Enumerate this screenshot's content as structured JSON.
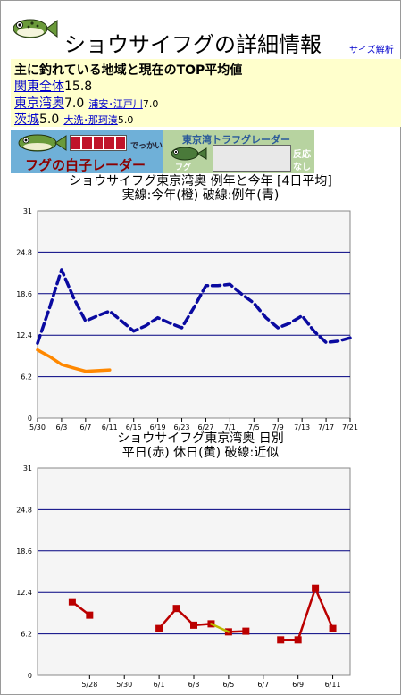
{
  "header": {
    "title": "ショウサイフグの詳細情報",
    "size_link": "サイズ解析"
  },
  "summary": {
    "heading": "主に釣れている地域と現在のTOP平均値",
    "rows": [
      {
        "name": "関東全体",
        "value": "15.8",
        "subs": []
      },
      {
        "name": "東京湾奥",
        "value": "7.0",
        "subs": [
          {
            "name": "浦安･江戸川",
            "value": "7.0"
          }
        ]
      },
      {
        "name": "茨城",
        "value": "5.0",
        "subs": [
          {
            "name": "大洗･那珂湊",
            "value": "5.0"
          }
        ]
      }
    ]
  },
  "banners": {
    "left": {
      "small": "でっかい",
      "main": "フグの白子レーダー"
    },
    "right": {
      "title": "東京湾トラフグレーダー",
      "fish": "フグ",
      "status1": "反応",
      "status2": "なし"
    }
  },
  "colors": {
    "this_year": "#ff8800",
    "avg_year": "#0a0aa0",
    "weekday": "#bb0000",
    "holiday": "#bbbb00",
    "plot_bg": "#f5f5f5",
    "grid": "#000080"
  },
  "chart_data": [
    {
      "type": "line",
      "title": "ショウサイフグ東京湾奥 例年と今年 [4日平均]",
      "subtitle": "実線:今年(橙) 破線:例年(青)",
      "xlabel": "",
      "ylabel": "",
      "ylim": [
        0,
        31
      ],
      "yticks": [
        "0",
        "6.2",
        "12.4",
        "18.6",
        "24.8",
        "31"
      ],
      "categories": [
        "5/30",
        "6/3",
        "6/7",
        "6/11",
        "6/15",
        "6/19",
        "6/23",
        "6/27",
        "7/1",
        "7/5",
        "7/9",
        "7/13",
        "7/17",
        "7/21"
      ],
      "grid": true,
      "series": [
        {
          "style": "dashed",
          "color": "#0a0aa0",
          "x": [
            "5/30",
            "6/1",
            "6/3",
            "6/5",
            "6/7",
            "6/9",
            "6/11",
            "6/13",
            "6/15",
            "6/17",
            "6/19",
            "6/21",
            "6/23",
            "6/25",
            "6/27",
            "6/29",
            "7/1",
            "7/3",
            "7/5",
            "7/7",
            "7/9",
            "7/11",
            "7/13",
            "7/15",
            "7/17",
            "7/19",
            "7/21"
          ],
          "values": [
            11.2,
            16.5,
            22.2,
            18.0,
            14.5,
            15.3,
            16.0,
            14.5,
            13.0,
            13.8,
            15.0,
            14.2,
            13.5,
            16.5,
            19.8,
            19.8,
            20.0,
            18.5,
            17.2,
            15.0,
            13.5,
            14.2,
            15.3,
            13.0,
            11.3,
            11.5,
            12.0
          ]
        },
        {
          "style": "solid",
          "color": "#ff8800",
          "x": [
            "5/30",
            "6/1",
            "6/3",
            "6/5",
            "6/7",
            "6/9",
            "6/11"
          ],
          "values": [
            10.2,
            9.2,
            8.0,
            7.5,
            7.0,
            7.1,
            7.2
          ]
        }
      ]
    },
    {
      "type": "line",
      "title": "ショウサイフグ東京湾奥 日別",
      "subtitle": "平日(赤) 休日(黄) 破線:近似",
      "xlabel": "",
      "ylabel": "",
      "ylim": [
        0,
        31
      ],
      "yticks": [
        "0",
        "6.2",
        "12.4",
        "18.6",
        "24.8",
        "31"
      ],
      "categories": [
        "5/28",
        "5/30",
        "6/1",
        "6/3",
        "6/5",
        "6/7",
        "6/9",
        "6/11"
      ],
      "grid": true,
      "series": [
        {
          "style": "solid",
          "color": "#bb0000",
          "x": [
            "5/27",
            "5/28",
            "6/1",
            "6/2",
            "6/3",
            "6/4",
            "6/5",
            "6/6",
            "6/8",
            "6/9",
            "6/10",
            "6/11"
          ],
          "values": [
            11.0,
            9.0,
            7.0,
            10.0,
            7.5,
            7.7,
            6.5,
            6.6,
            5.3,
            5.3,
            13.0,
            7.0
          ],
          "segments": [
            [
              0,
              1
            ],
            [
              2,
              3,
              4,
              5
            ],
            [
              6,
              7
            ],
            [
              8,
              9,
              10,
              11
            ]
          ]
        },
        {
          "style": "solid",
          "color": "#bbbb00",
          "x": [
            "6/4",
            "6/5"
          ],
          "values": [
            7.7,
            6.5
          ],
          "segments": [
            [
              0,
              1
            ]
          ]
        }
      ]
    }
  ]
}
